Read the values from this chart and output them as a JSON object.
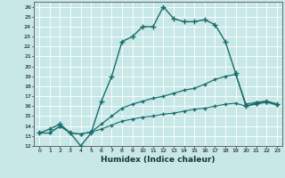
{
  "xlabel": "Humidex (Indice chaleur)",
  "xlim": [
    -0.5,
    23.5
  ],
  "ylim": [
    12,
    26.5
  ],
  "xticks": [
    0,
    1,
    2,
    3,
    4,
    5,
    6,
    7,
    8,
    9,
    10,
    11,
    12,
    13,
    14,
    15,
    16,
    17,
    18,
    19,
    20,
    21,
    22,
    23
  ],
  "yticks": [
    12,
    13,
    14,
    15,
    16,
    17,
    18,
    19,
    20,
    21,
    22,
    23,
    24,
    25,
    26
  ],
  "bg_color": "#c8e8e8",
  "grid_color": "#ffffff",
  "line_color": "#1a6b6b",
  "lines": [
    {
      "x": [
        0,
        1,
        2,
        3,
        4,
        5,
        6,
        7,
        8,
        9,
        10,
        11,
        12,
        13,
        14,
        15,
        16,
        17,
        18,
        19,
        20,
        21,
        22,
        23
      ],
      "y": [
        13.3,
        13.7,
        14.2,
        13.3,
        12.0,
        13.3,
        16.5,
        19.0,
        22.5,
        23.0,
        24.0,
        24.0,
        26.0,
        24.8,
        24.5,
        24.5,
        24.7,
        24.2,
        22.5,
        19.3,
        16.0,
        16.3,
        16.5,
        16.2
      ],
      "marker": "+",
      "ms": 4,
      "lw": 1.0
    },
    {
      "x": [
        0,
        1,
        2,
        3,
        4,
        5,
        6,
        7,
        8,
        9,
        10,
        11,
        12,
        13,
        14,
        15,
        16,
        17,
        18,
        19,
        20,
        21,
        22,
        23
      ],
      "y": [
        13.3,
        13.3,
        14.0,
        13.3,
        13.2,
        13.4,
        14.2,
        15.0,
        15.8,
        16.2,
        16.5,
        16.8,
        17.0,
        17.3,
        17.6,
        17.8,
        18.2,
        18.7,
        19.0,
        19.2,
        16.2,
        16.4,
        16.5,
        16.2
      ],
      "marker": "+",
      "ms": 3,
      "lw": 0.9
    },
    {
      "x": [
        0,
        1,
        2,
        3,
        4,
        5,
        6,
        7,
        8,
        9,
        10,
        11,
        12,
        13,
        14,
        15,
        16,
        17,
        18,
        19,
        20,
        21,
        22,
        23
      ],
      "y": [
        13.3,
        13.3,
        14.0,
        13.3,
        13.2,
        13.4,
        13.7,
        14.1,
        14.5,
        14.7,
        14.9,
        15.0,
        15.2,
        15.3,
        15.5,
        15.7,
        15.8,
        16.0,
        16.2,
        16.3,
        16.0,
        16.2,
        16.4,
        16.1
      ],
      "marker": "+",
      "ms": 3,
      "lw": 0.8
    }
  ]
}
